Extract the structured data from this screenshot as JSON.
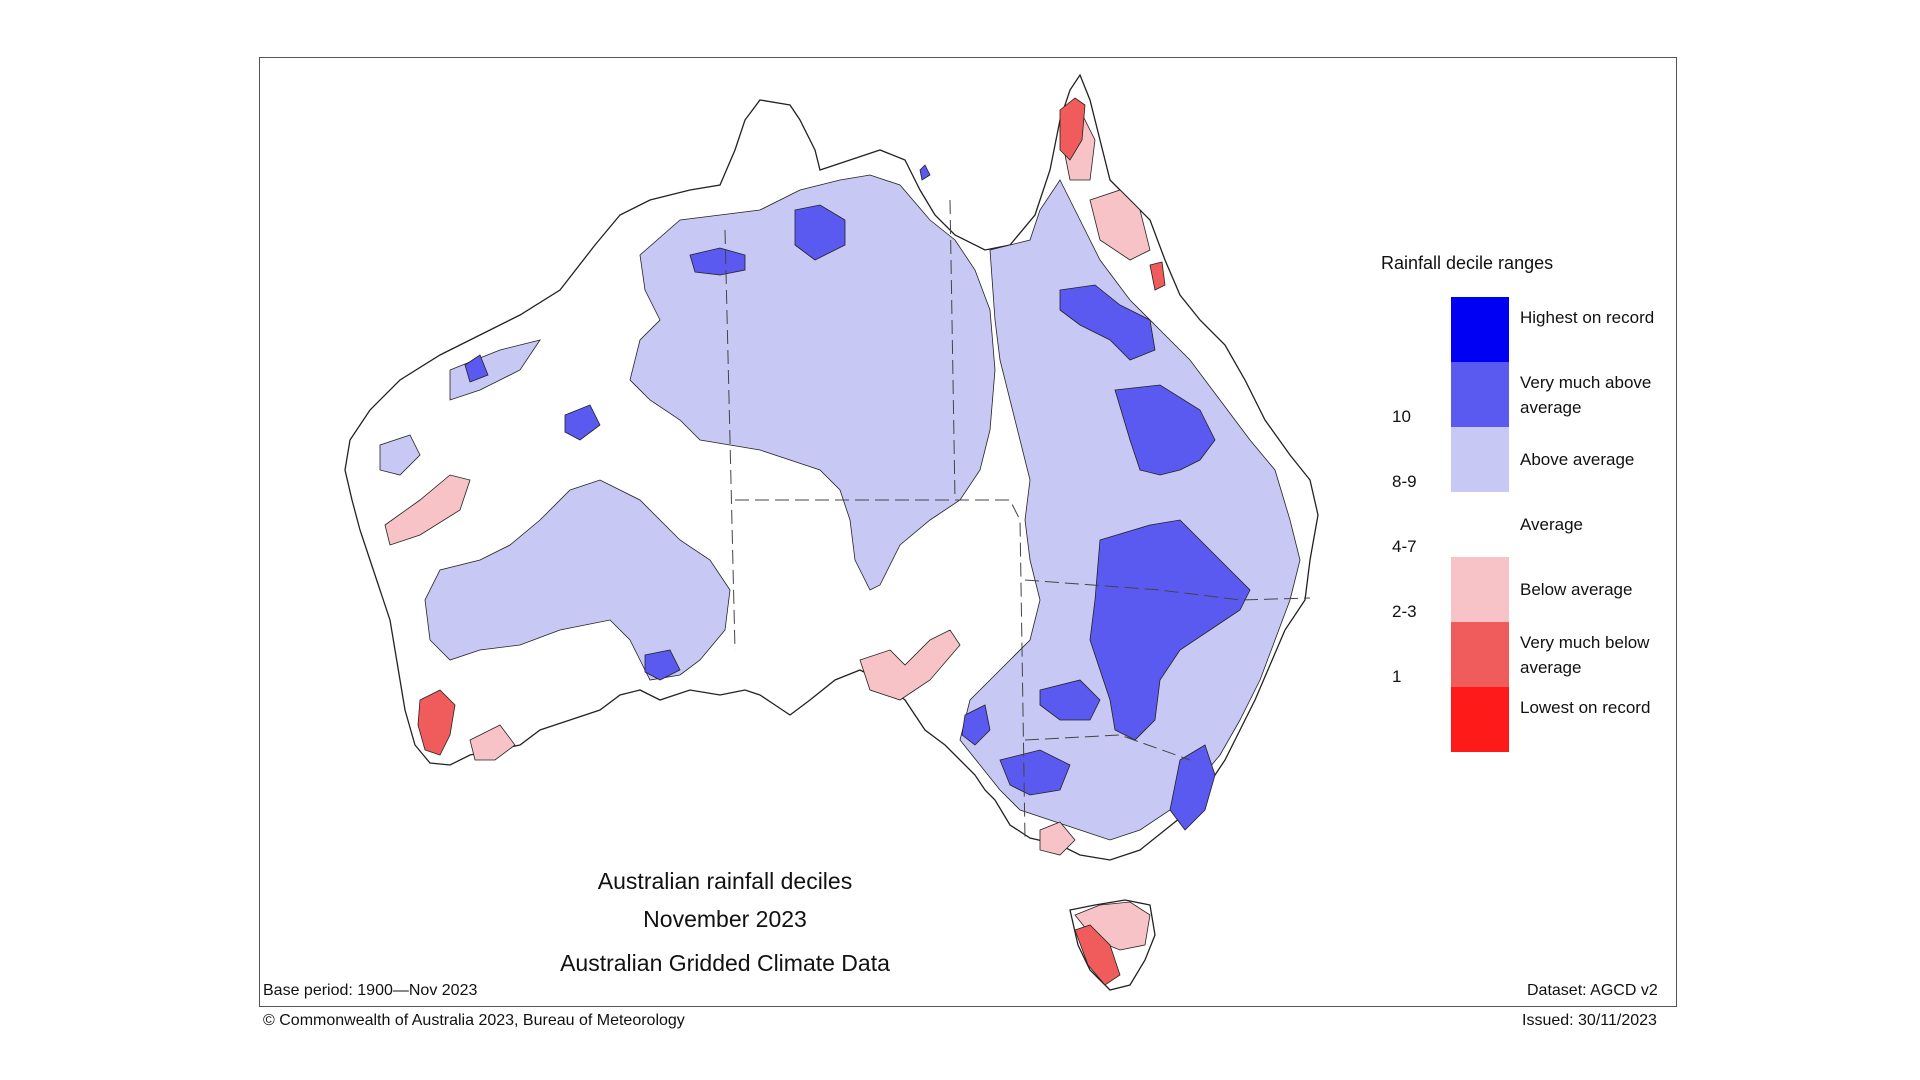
{
  "map": {
    "title_lines": [
      "Australian rainfall deciles",
      "November 2023",
      "Australian Gridded Climate Data"
    ],
    "base_period": "Base period: 1900—Nov 2023",
    "dataset": "Dataset: AGCD v2",
    "copyright": "© Commonwealth of Australia 2023, Bureau of Meteorology",
    "issued": "Issued: 30/11/2023"
  },
  "legend": {
    "title": "Rainfall decile ranges",
    "items": [
      {
        "range": "",
        "label": "Highest on record",
        "color": "#0000f5"
      },
      {
        "range": "10",
        "label": "Very much above average",
        "color": "#5a5af0"
      },
      {
        "range": "8-9",
        "label": "Above average",
        "color": "#c8c8f5"
      },
      {
        "range": "4-7",
        "label": "Average",
        "color": "#ffffff"
      },
      {
        "range": "2-3",
        "label": "Below average",
        "color": "#f7c3c6"
      },
      {
        "range": "1",
        "label": "Very much below average",
        "color": "#f05c5c"
      },
      {
        "range": "",
        "label": "Lowest on record",
        "color": "#ff1a1a"
      }
    ]
  }
}
